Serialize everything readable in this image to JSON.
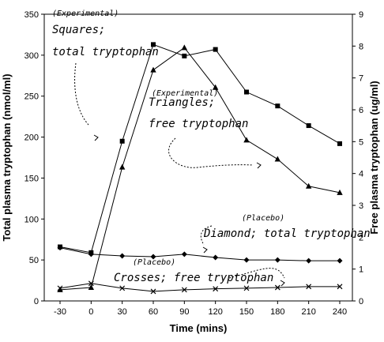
{
  "chart_data": {
    "type": "line",
    "x": [
      -30,
      0,
      30,
      60,
      90,
      120,
      150,
      180,
      210,
      240
    ],
    "xlabel": "Time (mins)",
    "ylabel": "Total plasma tryptophan (nmol/ml)",
    "y2label": "Free plasma tryptophan (ug/ml)",
    "ylim": [
      0,
      350
    ],
    "y2lim": [
      0,
      9
    ],
    "yticks": [
      0,
      50,
      100,
      150,
      200,
      250,
      300,
      350
    ],
    "y2ticks": [
      0,
      1,
      2,
      3,
      4,
      5,
      6,
      7,
      8,
      9
    ],
    "grid": false,
    "series": [
      {
        "axis": "left",
        "marker": "square",
        "values": [
          66,
          59,
          195,
          313,
          299,
          307,
          255,
          238,
          214,
          192
        ]
      },
      {
        "axis": "right",
        "marker": "triangle",
        "values": [
          0.35,
          0.42,
          4.2,
          7.25,
          7.95,
          6.7,
          5.05,
          4.45,
          3.6,
          3.4
        ]
      },
      {
        "axis": "left",
        "marker": "diamond",
        "values": [
          65,
          57,
          55,
          54,
          57,
          53,
          50,
          50,
          49,
          49
        ]
      },
      {
        "axis": "right",
        "marker": "cross",
        "values": [
          0.4,
          0.55,
          0.4,
          0.3,
          0.35,
          0.38,
          0.4,
          0.42,
          0.45,
          0.45
        ]
      }
    ],
    "annotations": [
      {
        "id": "squares-tag",
        "text": "(Experimental)",
        "size": "small"
      },
      {
        "id": "squares-1",
        "text": "Squares;",
        "size": "large"
      },
      {
        "id": "squares-2",
        "text": "total tryptophan",
        "size": "large"
      },
      {
        "id": "triangles-tag",
        "text": "(Experimental)",
        "size": "small"
      },
      {
        "id": "triangles-1",
        "text": "Triangles;",
        "size": "large"
      },
      {
        "id": "triangles-2",
        "text": "free tryptophan",
        "size": "large"
      },
      {
        "id": "diamond-tag",
        "text": "(Placebo)",
        "size": "small"
      },
      {
        "id": "diamond-1",
        "text": "Diamond; total tryptophan",
        "size": "large"
      },
      {
        "id": "crosses-tag",
        "text": "(Placebo)",
        "size": "small"
      },
      {
        "id": "crosses-1",
        "text": "Crosses; free tryptophan",
        "size": "large"
      }
    ]
  }
}
